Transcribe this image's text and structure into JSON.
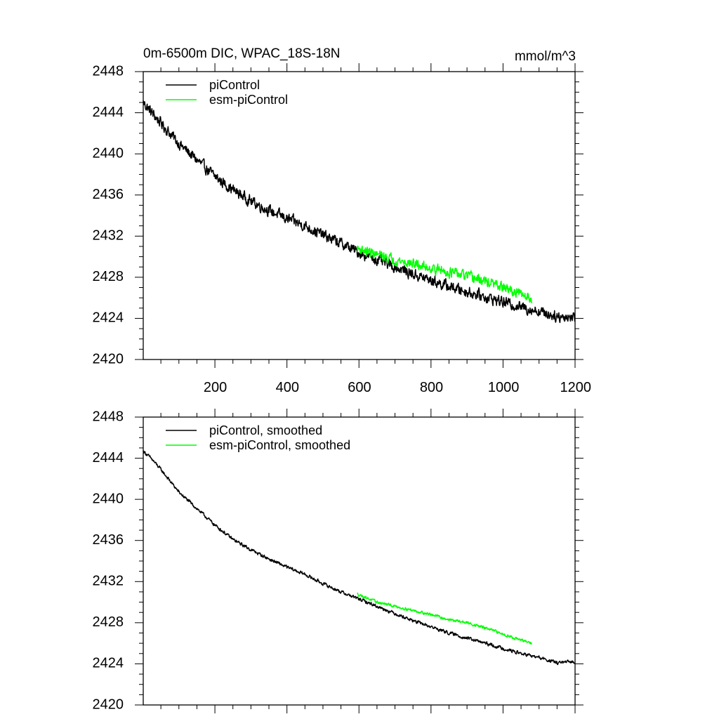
{
  "chart_data": [
    {
      "type": "line",
      "title": "0m-6500m DIC, WPAC_18S-18N",
      "units": "mmol/m^3",
      "xlabel": "",
      "ylabel": "",
      "xlim": [
        1,
        1200
      ],
      "ylim": [
        2420,
        2448
      ],
      "xticks": [
        200,
        400,
        600,
        800,
        1000,
        1200
      ],
      "xtick_labels": [
        "200",
        "400",
        "600",
        "800",
        "1000",
        "1200"
      ],
      "yticks": [
        2420,
        2424,
        2428,
        2432,
        2436,
        2440,
        2444,
        2448
      ],
      "ytick_labels": [
        "2420",
        "2424",
        "2428",
        "2432",
        "2436",
        "2440",
        "2444",
        "2448"
      ],
      "legend_position": "top-left",
      "series": [
        {
          "name": "piControl",
          "color": "#000000",
          "x": [
            1,
            25,
            50,
            100,
            150,
            200,
            250,
            300,
            350,
            400,
            450,
            500,
            550,
            600,
            650,
            700,
            750,
            800,
            850,
            900,
            950,
            1000,
            1050,
            1100,
            1150,
            1200
          ],
          "values": [
            2445.0,
            2444.0,
            2443.0,
            2441.0,
            2439.4,
            2437.8,
            2436.5,
            2435.4,
            2434.5,
            2433.7,
            2433.0,
            2432.1,
            2431.3,
            2430.4,
            2429.7,
            2429.0,
            2428.3,
            2427.7,
            2427.1,
            2426.6,
            2426.1,
            2425.6,
            2425.1,
            2424.7,
            2424.2,
            2424.1
          ],
          "noise_amplitude": 0.6
        },
        {
          "name": "esm-piControl",
          "color": "#00ff00",
          "x": [
            595,
            650,
            700,
            750,
            800,
            850,
            900,
            950,
            1000,
            1050,
            1080
          ],
          "values": [
            2430.8,
            2430.2,
            2429.7,
            2429.3,
            2428.9,
            2428.5,
            2428.1,
            2427.6,
            2427.0,
            2426.3,
            2426.0
          ],
          "noise_amplitude": 0.55
        }
      ]
    },
    {
      "type": "line",
      "title": "",
      "xlabel": "",
      "ylabel": "",
      "xlim": [
        1,
        1200
      ],
      "ylim": [
        2420,
        2448
      ],
      "xticks": [
        200,
        400,
        600,
        800,
        1000,
        1200
      ],
      "yticks": [
        2420,
        2424,
        2428,
        2432,
        2436,
        2440,
        2444,
        2448
      ],
      "ytick_labels": [
        "2420",
        "2424",
        "2428",
        "2432",
        "2436",
        "2440",
        "2444",
        "2448"
      ],
      "legend_position": "top-left",
      "series": [
        {
          "name": "piControl, smoothed",
          "color": "#000000",
          "x": [
            1,
            25,
            50,
            100,
            150,
            200,
            250,
            300,
            350,
            400,
            450,
            500,
            550,
            600,
            650,
            700,
            750,
            800,
            850,
            900,
            950,
            1000,
            1050,
            1100,
            1150,
            1200
          ],
          "values": [
            2444.7,
            2443.9,
            2442.9,
            2440.7,
            2439.1,
            2437.5,
            2436.1,
            2435.1,
            2434.2,
            2433.4,
            2432.7,
            2431.8,
            2431.0,
            2430.3,
            2429.6,
            2428.9,
            2428.2,
            2427.6,
            2427.0,
            2426.5,
            2426.0,
            2425.5,
            2425.0,
            2424.6,
            2424.1,
            2424.2
          ],
          "noise_amplitude": 0.18
        },
        {
          "name": "esm-piControl, smoothed",
          "color": "#00ff00",
          "x": [
            595,
            650,
            700,
            750,
            800,
            850,
            900,
            950,
            1000,
            1050,
            1080
          ],
          "values": [
            2430.8,
            2430.0,
            2429.6,
            2429.2,
            2428.8,
            2428.3,
            2428.0,
            2427.5,
            2426.9,
            2426.3,
            2426.0
          ],
          "noise_amplitude": 0.15
        }
      ]
    }
  ]
}
